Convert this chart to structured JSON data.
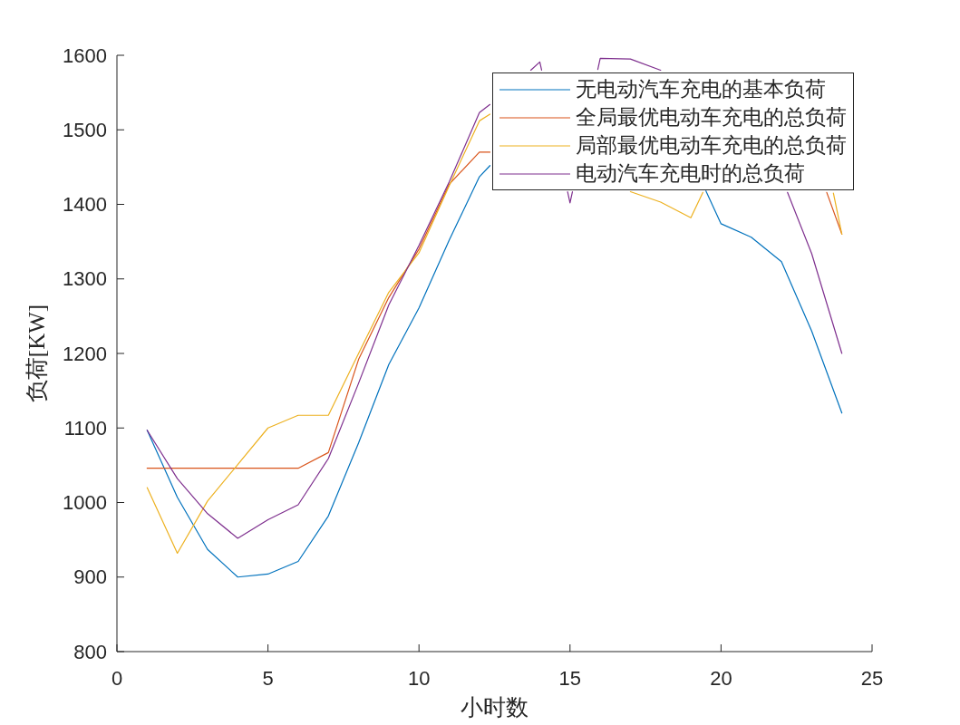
{
  "chart_data": {
    "type": "line",
    "xlabel": "小时数",
    "ylabel": "负荷[KW]",
    "series": [
      {
        "name": "无电动汽车充电的基本负荷",
        "color": "#0072bd",
        "x": [
          1,
          2,
          3,
          4,
          5,
          6,
          7,
          8,
          9,
          10,
          11,
          12,
          12.35,
          16,
          19.5,
          20,
          21,
          22,
          23,
          24
        ],
        "values": [
          1097,
          1007,
          937,
          900,
          904,
          921,
          982,
          1080,
          1185,
          1261,
          1352,
          1437,
          1452,
          null,
          1418,
          1374,
          1356,
          1323,
          1230,
          1120
        ]
      },
      {
        "name": "全局最优电动车充电的总负荷",
        "color": "#d95319",
        "x": [
          1,
          2,
          3,
          4,
          5,
          6,
          7,
          8,
          9,
          10,
          11,
          12,
          12.35,
          18,
          23.5,
          24
        ],
        "values": [
          1046,
          1046,
          1046,
          1046,
          1046,
          1046,
          1067,
          1192,
          1275,
          1340,
          1427,
          1470,
          1470,
          null,
          1416,
          1360
        ]
      },
      {
        "name": "局部最优电动车充电的总负荷",
        "color": "#edb120",
        "x": [
          1,
          2,
          3,
          4,
          5,
          6,
          7,
          8,
          9,
          10,
          11,
          12,
          12.35,
          15,
          17,
          18,
          19,
          19.4,
          21,
          23.72,
          24
        ],
        "values": [
          1020,
          932,
          1002,
          1051,
          1100,
          1117,
          1117,
          1200,
          1282,
          1335,
          1425,
          1512,
          1521,
          null,
          1417,
          1403,
          1382,
          1416,
          null,
          1415,
          1360
        ]
      },
      {
        "name": "电动汽车充电时的总负荷",
        "color": "#7e2f8e",
        "x": [
          1,
          2,
          3,
          4,
          5,
          6,
          7,
          8,
          9,
          10,
          11,
          12,
          12.35,
          13,
          13.7,
          14,
          14.06,
          14.5,
          14.92,
          15,
          15.08,
          15.5,
          15.92,
          16,
          17,
          18,
          20,
          22.2,
          23,
          24
        ],
        "values": [
          1097,
          1032,
          985,
          952,
          977,
          997,
          1059,
          1160,
          1265,
          1345,
          1430,
          1523,
          1534,
          null,
          1580,
          1591,
          1580,
          null,
          1417,
          1402,
          1417,
          null,
          1581,
          1596,
          1595,
          1580,
          null,
          1416,
          1334,
          1200
        ]
      }
    ],
    "xlim": [
      0,
      25
    ],
    "xticks": [
      0,
      5,
      10,
      15,
      20,
      25
    ],
    "ylim": [
      800,
      1600
    ],
    "yticks": [
      800,
      900,
      1000,
      1100,
      1200,
      1300,
      1400,
      1500,
      1600
    ],
    "legend": "top right"
  }
}
